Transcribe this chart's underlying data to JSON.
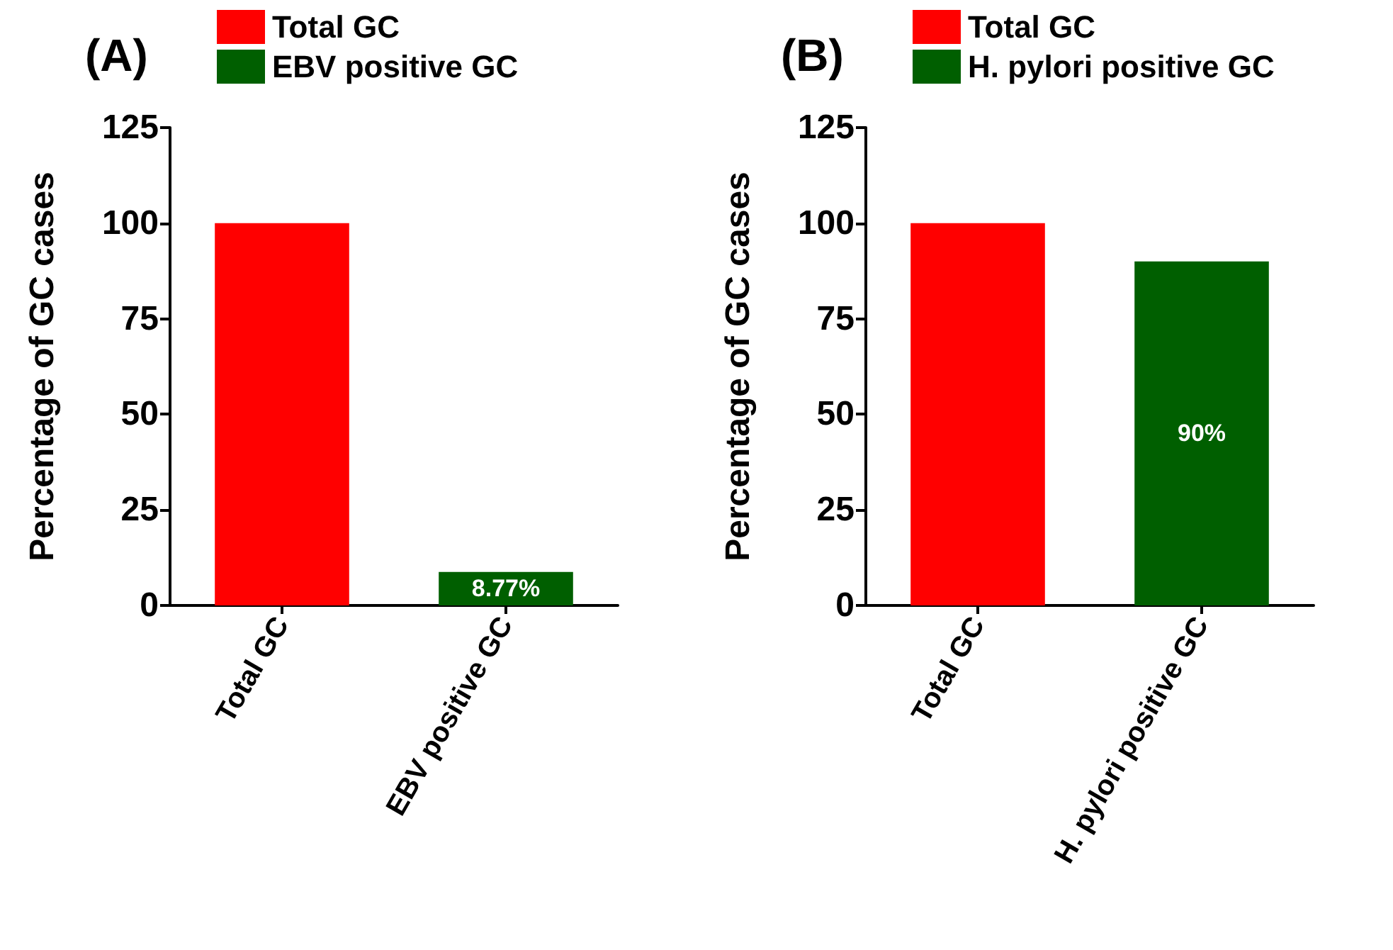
{
  "chart_data": [
    {
      "type": "bar",
      "title": "(A)",
      "ylabel": "Percentage of GC cases",
      "categories": [
        "Total GC",
        "EBV positive GC"
      ],
      "series": [
        {
          "name": "Total GC",
          "color": "#ff0000",
          "values": [
            100,
            null
          ]
        },
        {
          "name": "EBV positive GC",
          "color": "#005f00",
          "values": [
            null,
            8.77
          ],
          "value_labels": [
            null,
            "8.77%"
          ]
        }
      ],
      "ylim": [
        0,
        125
      ],
      "yticks": [
        0,
        25,
        50,
        75,
        100,
        125
      ],
      "legend": "top",
      "grid": false
    },
    {
      "type": "bar",
      "title": "(B)",
      "ylabel": "Percentage of GC cases",
      "categories": [
        "Total GC",
        "H. pylori positive GC"
      ],
      "series": [
        {
          "name": "Total GC",
          "color": "#ff0000",
          "values": [
            100,
            null
          ]
        },
        {
          "name": "H. pylori positive GC",
          "color": "#005f00",
          "values": [
            null,
            90
          ],
          "value_labels": [
            null,
            "90%"
          ]
        }
      ],
      "ylim": [
        0,
        125
      ],
      "yticks": [
        0,
        25,
        50,
        75,
        100,
        125
      ],
      "legend": "top",
      "grid": false
    }
  ]
}
